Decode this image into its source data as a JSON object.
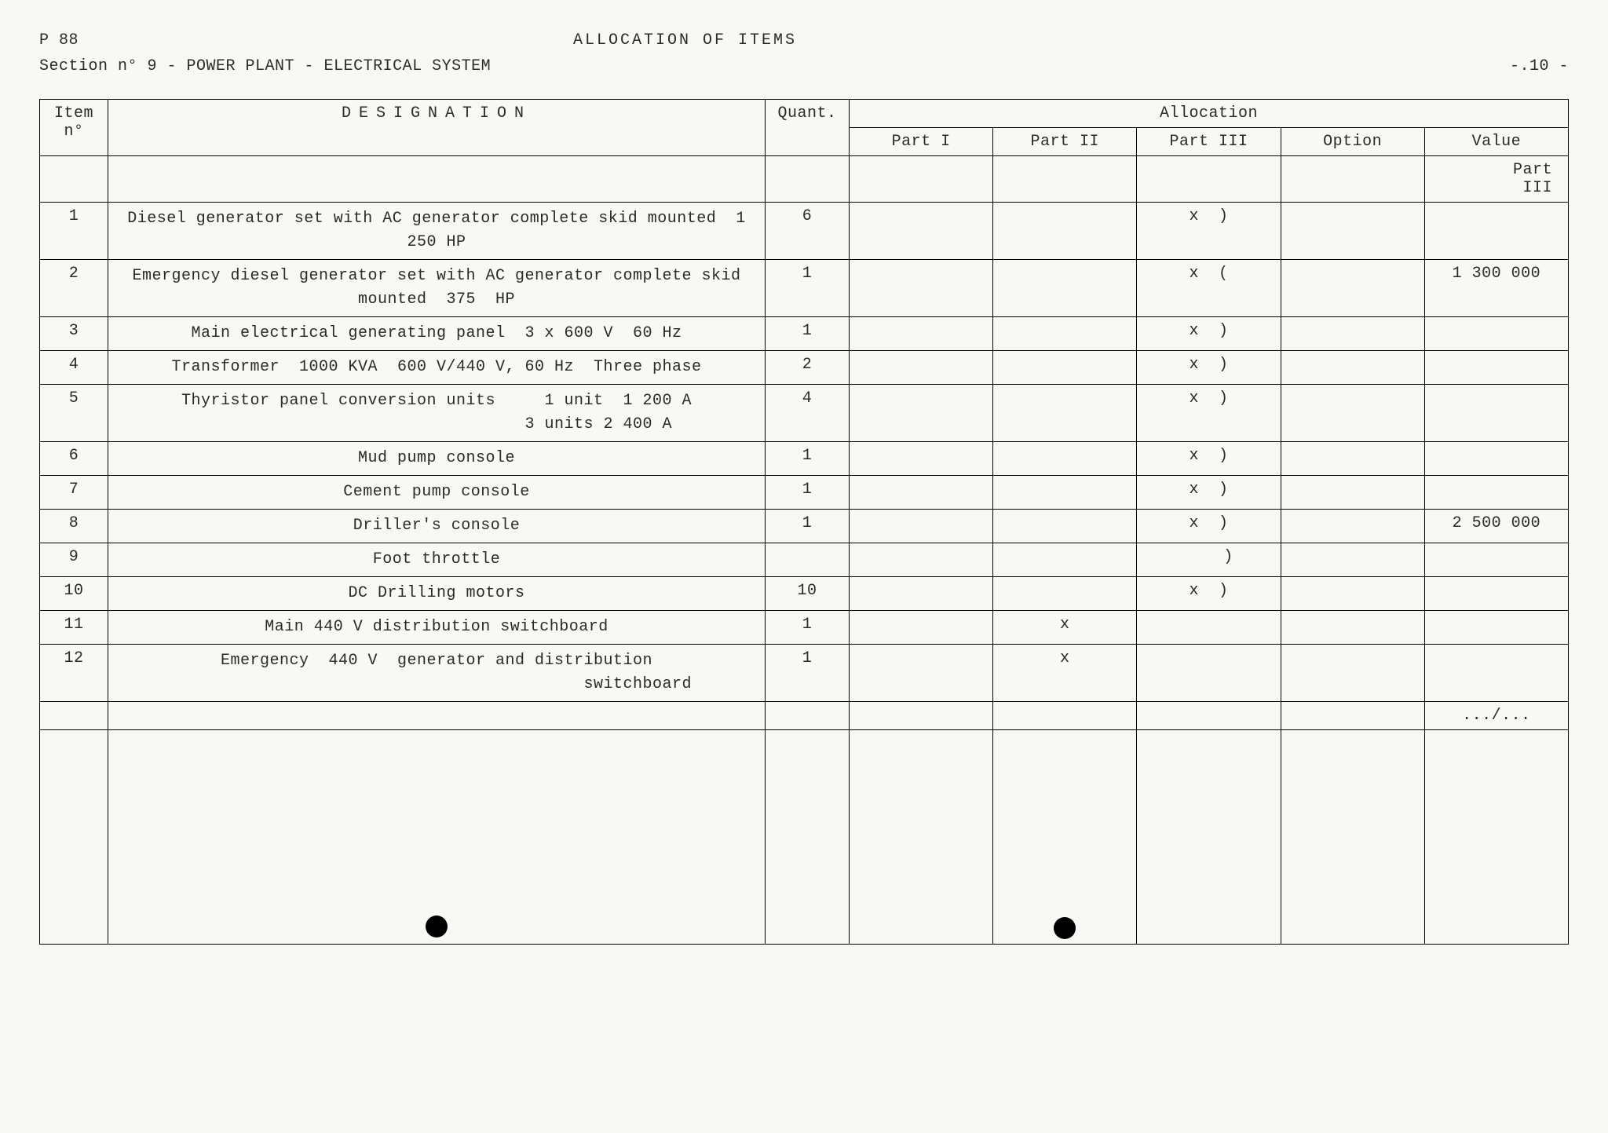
{
  "header": {
    "code": "P 88",
    "title": "ALLOCATION  OF  ITEMS",
    "section": "Section  n°  9   - POWER PLANT   -  ELECTRICAL SYSTEM",
    "page": "-.10 -"
  },
  "table": {
    "head": {
      "item_no": "Item n°",
      "designation": "DESIGNATION",
      "quant": "Quant.",
      "allocation": "Allocation",
      "part1": "Part I",
      "part2": "Part II",
      "part3": "Part III",
      "option": "Option",
      "value": "Value"
    },
    "value_header_note": "Part\nIII",
    "rows": [
      {
        "n": "1",
        "d": "Diesel generator set with AC generator complete skid mounted  1 250 HP",
        "q": "6",
        "p1": "",
        "p2": "",
        "p3": "x  )",
        "opt": "",
        "val": ""
      },
      {
        "n": "2",
        "d": "Emergency diesel generator set with AC generator complete skid mounted  375  HP",
        "q": "1",
        "p1": "",
        "p2": "",
        "p3": "x  (",
        "opt": "",
        "val": "1 300 000"
      },
      {
        "n": "3",
        "d": "Main electrical generating panel  3 x 600 V  60 Hz",
        "q": "1",
        "p1": "",
        "p2": "",
        "p3": "x  )",
        "opt": "",
        "val": ""
      },
      {
        "n": "4",
        "d": "Transformer  1000 KVA  600 V/440 V, 60 Hz  Three phase",
        "q": "2",
        "p1": "",
        "p2": "",
        "p3": "x  )",
        "opt": "",
        "val": ""
      },
      {
        "n": "5",
        "d": "Thyristor panel conversion units     1 unit  1 200 A\n                                 3 units 2 400 A",
        "q": "4",
        "p1": "",
        "p2": "",
        "p3": "x  )",
        "opt": "",
        "val": ""
      },
      {
        "n": "6",
        "d": "Mud pump console",
        "q": "1",
        "p1": "",
        "p2": "",
        "p3": "x  )",
        "opt": "",
        "val": ""
      },
      {
        "n": "7",
        "d": "Cement pump console",
        "q": "1",
        "p1": "",
        "p2": "",
        "p3": "x  )",
        "opt": "",
        "val": ""
      },
      {
        "n": "8",
        "d": "Driller's console",
        "q": "1",
        "p1": "",
        "p2": "",
        "p3": "x  )",
        "opt": "",
        "val": "2 500 000"
      },
      {
        "n": "9",
        "d": "Foot throttle",
        "q": "",
        "p1": "",
        "p2": "",
        "p3": "    )",
        "opt": "",
        "val": ""
      },
      {
        "n": "10",
        "d": "DC Drilling motors",
        "q": "10",
        "p1": "",
        "p2": "",
        "p3": "x  )",
        "opt": "",
        "val": ""
      },
      {
        "n": "11",
        "d": "Main 440 V distribution switchboard",
        "q": "1",
        "p1": "",
        "p2": "x",
        "p3": "",
        "opt": "",
        "val": ""
      },
      {
        "n": "12",
        "d": "Emergency  440 V  generator and distribution\n                                         switchboard",
        "q": "1",
        "p1": "",
        "p2": "x",
        "p3": "",
        "opt": "",
        "val": ""
      }
    ],
    "continuation": ".../..."
  }
}
